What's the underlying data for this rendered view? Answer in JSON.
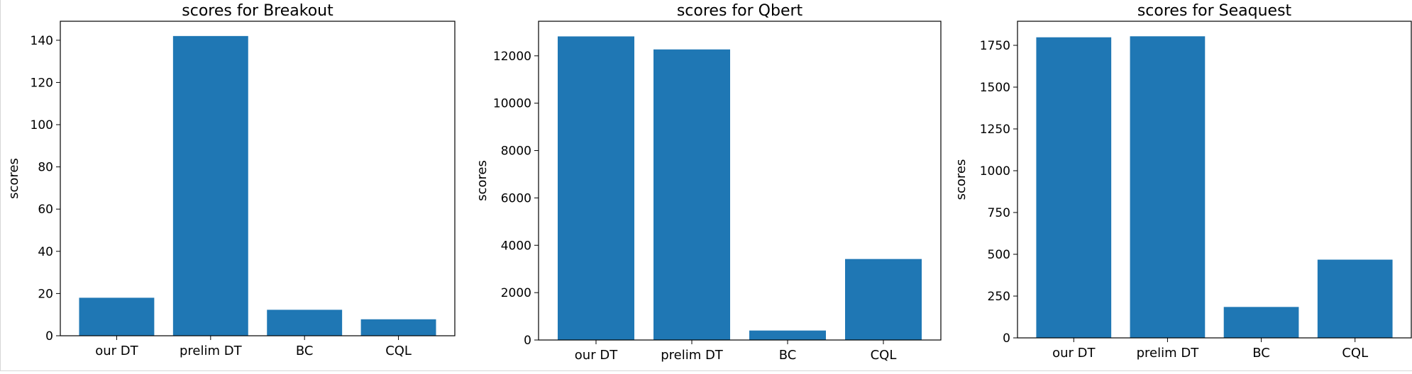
{
  "chart_data": [
    {
      "type": "bar",
      "title": "scores for Breakout",
      "xlabel": "",
      "ylabel": "scores",
      "categories": [
        "our DT",
        "prelim DT",
        "BC",
        "CQL"
      ],
      "values": [
        18,
        142,
        12.3,
        7.8
      ],
      "ylim": [
        0,
        149
      ],
      "yticks": [
        0,
        20,
        40,
        60,
        80,
        100,
        120,
        140
      ],
      "ytick_labels": [
        "0",
        "20",
        "40",
        "60",
        "80",
        "100",
        "120",
        "140"
      ],
      "color": "#1f77b4",
      "grid": false
    },
    {
      "type": "bar",
      "title": "scores for Qbert",
      "xlabel": "",
      "ylabel": "scores",
      "categories": [
        "our DT",
        "prelim DT",
        "BC",
        "CQL"
      ],
      "values": [
        12820,
        12270,
        400,
        3420
      ],
      "ylim": [
        0,
        13460
      ],
      "yticks": [
        0,
        2000,
        4000,
        6000,
        8000,
        10000,
        12000
      ],
      "ytick_labels": [
        "0",
        "2000",
        "4000",
        "6000",
        "8000",
        "10000",
        "12000"
      ],
      "color": "#1f77b4",
      "grid": false
    },
    {
      "type": "bar",
      "title": "scores for Seaquest",
      "xlabel": "",
      "ylabel": "scores",
      "categories": [
        "our DT",
        "prelim DT",
        "BC",
        "CQL"
      ],
      "values": [
        1798,
        1804,
        185,
        468
      ],
      "ylim": [
        0,
        1894
      ],
      "yticks": [
        0,
        250,
        500,
        750,
        1000,
        1250,
        1500,
        1750
      ],
      "ytick_labels": [
        "0",
        "250",
        "500",
        "750",
        "1000",
        "1250",
        "1500",
        "1750"
      ],
      "color": "#1f77b4",
      "grid": false
    }
  ]
}
